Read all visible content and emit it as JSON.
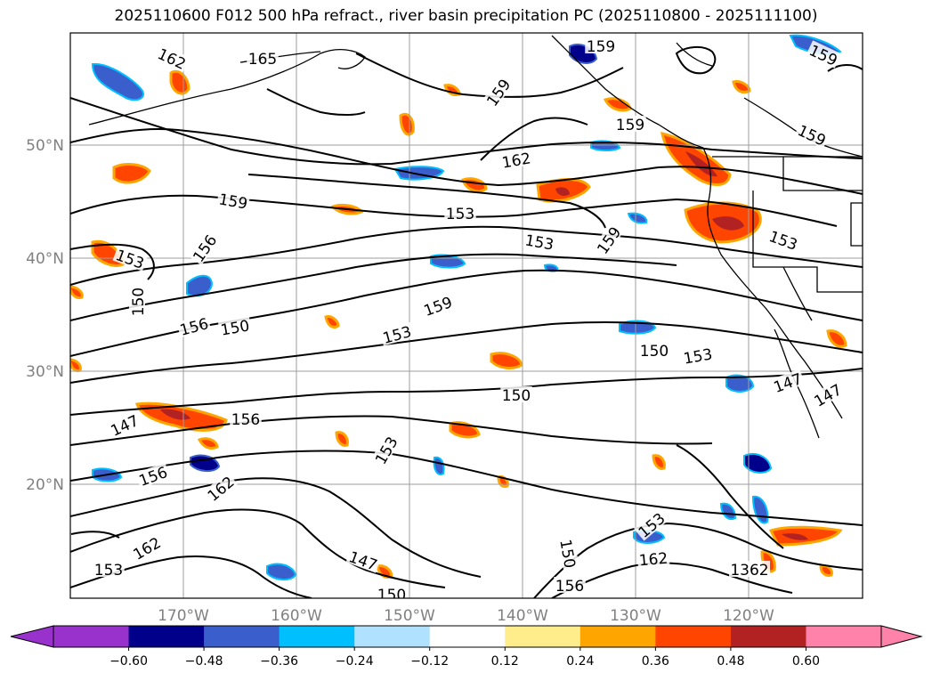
{
  "title": "2025110600 F012 500 hPa refract., river basin precipitation PC (2025110800 - 2025111100)",
  "map": {
    "lat_labels": [
      "50°N",
      "40°N",
      "30°N",
      "20°N"
    ],
    "lon_labels": [
      "170°W",
      "160°W",
      "150°W",
      "140°W",
      "130°W",
      "120°W"
    ],
    "contour_labels": [
      {
        "text": "162",
        "rot": 25
      },
      {
        "text": "165",
        "rot": 0
      },
      {
        "text": "159",
        "rot": 0
      },
      {
        "text": "159",
        "rot": 25
      },
      {
        "text": "159",
        "rot": -55
      },
      {
        "text": "159",
        "rot": 0
      },
      {
        "text": "159",
        "rot": 25
      },
      {
        "text": "162",
        "rot": -10
      },
      {
        "text": "159",
        "rot": 10
      },
      {
        "text": "153",
        "rot": 0
      },
      {
        "text": "153",
        "rot": 10
      },
      {
        "text": "153",
        "rot": 20
      },
      {
        "text": "159",
        "rot": -55
      },
      {
        "text": "153",
        "rot": 20
      },
      {
        "text": "156",
        "rot": -55
      },
      {
        "text": "150",
        "rot": -90
      },
      {
        "text": "156",
        "rot": -15
      },
      {
        "text": "150",
        "rot": -10
      },
      {
        "text": "153",
        "rot": -15
      },
      {
        "text": "159",
        "rot": -20
      },
      {
        "text": "150",
        "rot": 0
      },
      {
        "text": "153",
        "rot": -10
      },
      {
        "text": "150",
        "rot": 0
      },
      {
        "text": "147",
        "rot": -25
      },
      {
        "text": "147",
        "rot": -20
      },
      {
        "text": "147",
        "rot": -30
      },
      {
        "text": "156",
        "rot": 0
      },
      {
        "text": "153",
        "rot": -60
      },
      {
        "text": "156",
        "rot": -20
      },
      {
        "text": "162",
        "rot": -40
      },
      {
        "text": "153",
        "rot": 0
      },
      {
        "text": "162",
        "rot": -30
      },
      {
        "text": "147",
        "rot": 20
      },
      {
        "text": "150",
        "rot": 0
      },
      {
        "text": "150",
        "rot": 80
      },
      {
        "text": "153",
        "rot": -40
      },
      {
        "text": "162",
        "rot": -5
      },
      {
        "text": "156",
        "rot": 0
      },
      {
        "text": "1362",
        "rot": 0
      }
    ]
  },
  "colorbar": {
    "ticks": [
      "−0.60",
      "−0.48",
      "−0.36",
      "−0.24",
      "−0.12",
      "0.12",
      "0.24",
      "0.36",
      "0.48",
      "0.60"
    ],
    "colors": [
      "#9932CC",
      "#00008B",
      "#3A5FCD",
      "#00BFFF",
      "#B0E2FF",
      "#FFFFFF",
      "#FFEC8B",
      "#FFA500",
      "#FF4500",
      "#B22222",
      "#FF82AB",
      "#FF82AB"
    ]
  }
}
